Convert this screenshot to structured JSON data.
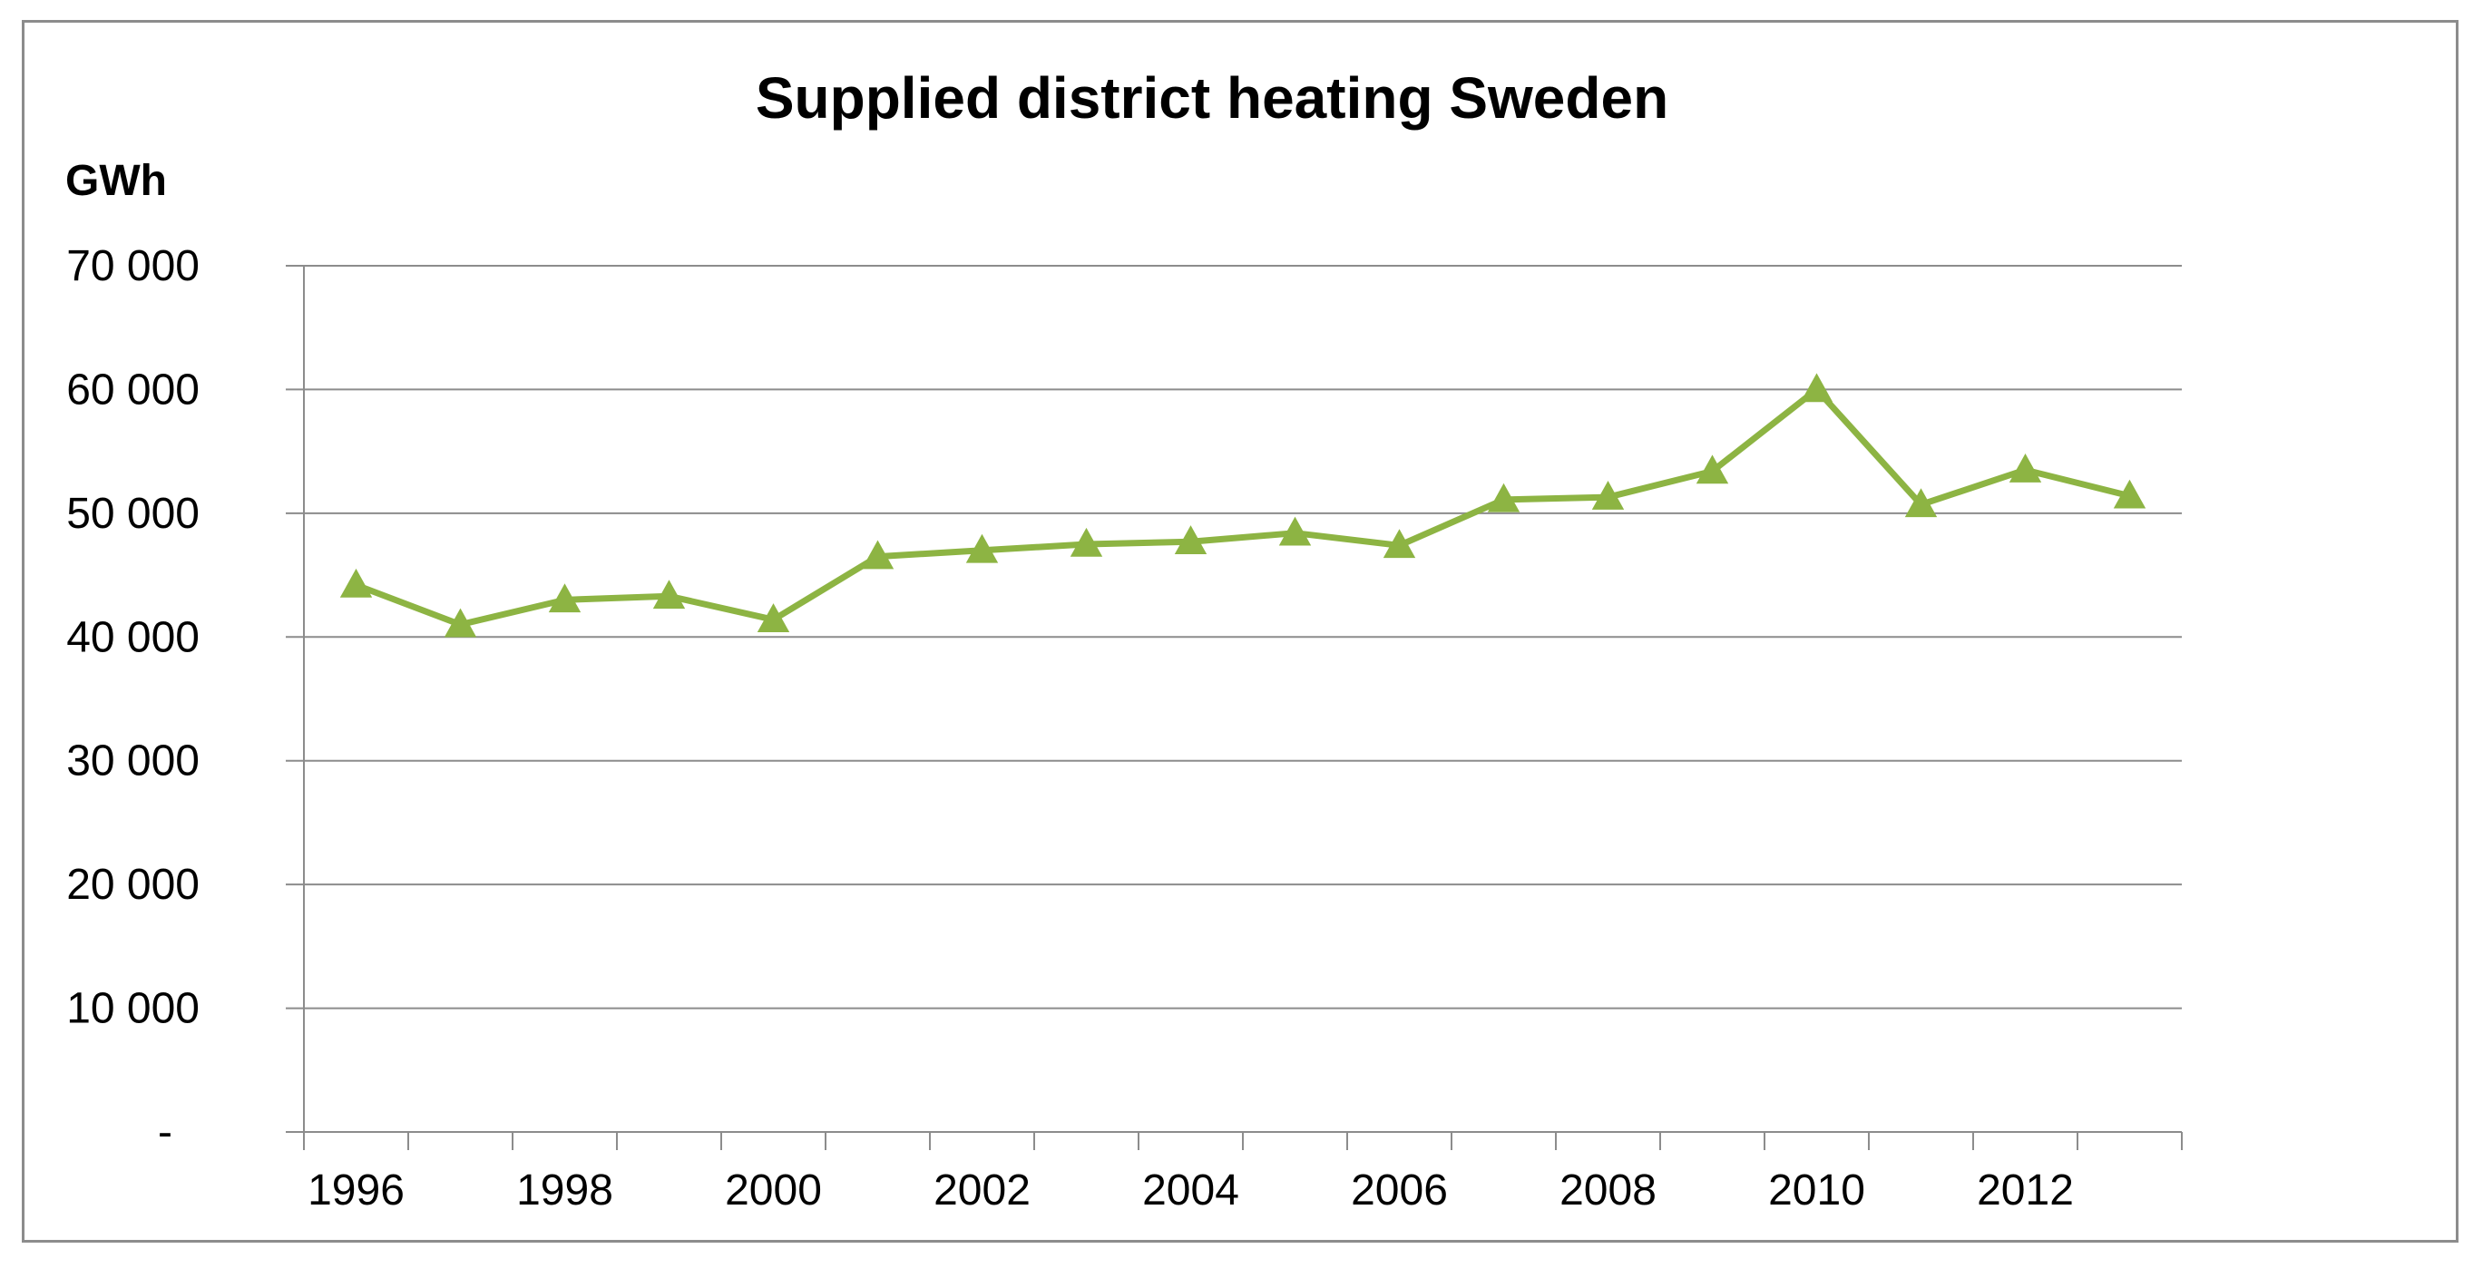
{
  "chart_data": {
    "type": "line",
    "title": "Supplied district heating Sweden",
    "ylabel": "GWh",
    "xlabel": "",
    "ylim": [
      0,
      70000
    ],
    "yticks": [
      0,
      10000,
      20000,
      30000,
      40000,
      50000,
      60000,
      70000
    ],
    "ytick_labels": [
      "-",
      "10 000",
      "20 000",
      "30 000",
      "40 000",
      "50 000",
      "60 000",
      "70 000"
    ],
    "x": [
      1996,
      1997,
      1998,
      1999,
      2000,
      2001,
      2002,
      2003,
      2004,
      2005,
      2006,
      2007,
      2008,
      2009,
      2010,
      2011,
      2012,
      2013
    ],
    "xtick_labels": [
      "1996",
      "1998",
      "2000",
      "2002",
      "2004",
      "2006",
      "2008",
      "2010",
      "2012"
    ],
    "grid": true,
    "series": [
      {
        "name": "Supplied district heating",
        "color": "#8db443",
        "marker": "triangle",
        "values": [
          44200,
          41000,
          43000,
          43300,
          41400,
          46500,
          47000,
          47500,
          47700,
          48400,
          47400,
          51100,
          51300,
          53400,
          60000,
          50700,
          53500,
          51400
        ]
      }
    ]
  }
}
